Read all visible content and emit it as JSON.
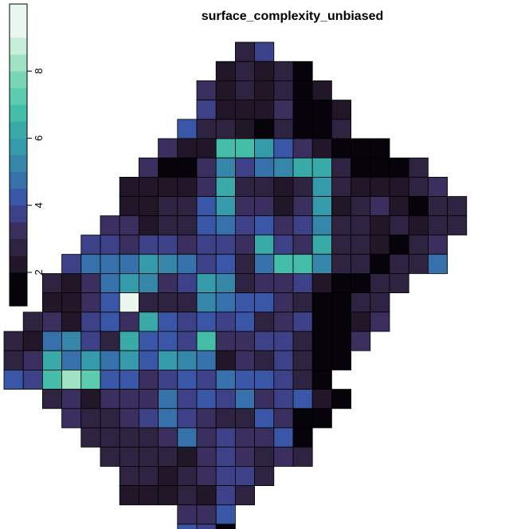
{
  "chart_data": {
    "type": "heatmap",
    "title": "surface_complexity_unbiased",
    "legend": {
      "position": "left",
      "range": [
        1,
        10
      ],
      "ticks": [
        2,
        4,
        6,
        8
      ],
      "bins": [
        1,
        2,
        2.5,
        3,
        3.5,
        4,
        4.5,
        5,
        5.5,
        6,
        6.5,
        7,
        7.5,
        8,
        8.5,
        9,
        10
      ],
      "colors": [
        "#06040a",
        "#221728",
        "#2e2341",
        "#3a2f5f",
        "#3d4187",
        "#3a56a6",
        "#3771ab",
        "#3686a9",
        "#359aaa",
        "#3aaaa8",
        "#44bea9",
        "#5bccad",
        "#79d6b4",
        "#9fe2c4",
        "#c7eed8",
        "#e9f7ee"
      ]
    },
    "col_origin": 3,
    "grid": [
      {
        "r": 0,
        "c0": 15,
        "v": [
          2.8,
          3.6
        ]
      },
      {
        "r": 1,
        "c0": 14,
        "v": [
          2.3,
          2.5,
          2.4,
          2.8,
          1.1
        ]
      },
      {
        "r": 2,
        "c0": 13,
        "v": [
          3.4,
          2.3,
          2.5,
          2.3,
          2.6,
          1.2,
          2.0
        ]
      },
      {
        "r": 3,
        "c0": 13,
        "v": [
          3.5,
          2.4,
          2.3,
          2.4,
          3.2,
          1.3,
          1.5,
          2.3
        ]
      },
      {
        "r": 4,
        "c0": 12,
        "v": [
          4.4,
          2.6,
          2.5,
          2.3,
          1.1,
          2.8,
          1.5,
          1.3,
          2.7
        ]
      },
      {
        "r": 5,
        "c0": 11,
        "v": [
          3.0,
          2.4,
          2.3,
          6.8,
          6.6,
          5.8,
          4.3,
          3.2,
          2.4,
          1.3,
          1.4,
          1.3
        ]
      },
      {
        "r": 6,
        "c0": 10,
        "v": [
          3.2,
          1.1,
          1.2,
          3.1,
          5.2,
          3.6,
          4.6,
          5.4,
          6.3,
          6.2,
          2.6,
          1.2,
          1.3,
          1.4,
          2.7
        ]
      },
      {
        "r": 7,
        "c0": 9,
        "v": [
          2.2,
          2.4,
          2.3,
          2.2,
          3.2,
          6.3,
          2.8,
          2.6,
          2.4,
          2.6,
          5.6,
          2.9,
          2.3,
          2.3,
          2.4,
          2.7,
          3.1
        ]
      },
      {
        "r": 8,
        "c0": 9,
        "v": [
          2.2,
          2.3,
          2.6,
          2.5,
          4.2,
          5.5,
          3.4,
          3.0,
          2.3,
          3.4,
          5.8,
          2.4,
          2.6,
          3.0,
          2.3,
          1.2,
          2.8,
          2.8
        ]
      },
      {
        "r": 9,
        "c0": 8,
        "v": [
          3.1,
          3.0,
          2.4,
          2.6,
          2.5,
          4.2,
          4.5,
          3.7,
          4.0,
          3.4,
          3.9,
          5.1,
          2.5,
          2.6,
          2.3,
          2.9,
          2.4,
          2.7,
          2.6
        ]
      },
      {
        "r": 10,
        "c0": 7,
        "v": [
          3.6,
          3.8,
          3.3,
          3.8,
          3.5,
          3.0,
          3.5,
          3.8,
          3.3,
          6.3,
          3.7,
          3.1,
          6.1,
          2.8,
          2.5,
          2.2,
          1.3,
          2.7,
          3.4
        ]
      },
      {
        "r": 11,
        "c0": 6,
        "v": [
          3.9,
          4.8,
          4.8,
          4.5,
          5.5,
          5.2,
          4.9,
          3.6,
          4.1,
          2.6,
          4.7,
          6.6,
          6.6,
          5.1,
          2.5,
          2.6,
          1.6,
          2.6,
          2.9,
          4.7
        ]
      },
      {
        "r": 12,
        "c0": 5,
        "v": [
          2.5,
          2.4,
          3.3,
          4.5,
          5.9,
          5.3,
          3.3,
          3.7,
          5.6,
          5.4,
          2.5,
          3.2,
          3.0,
          3.5,
          2.4,
          1.3,
          1.4,
          2.7,
          2.5
        ]
      },
      {
        "r": 13,
        "c0": 5,
        "v": [
          2.4,
          2.3,
          3.3,
          4.2,
          9.2,
          2.8,
          2.5,
          2.7,
          5.0,
          4.8,
          4.0,
          4.4,
          3.3,
          2.6,
          1.4,
          1.5,
          2.6,
          2.5
        ]
      },
      {
        "r": 14,
        "c0": 4,
        "v": [
          2.8,
          3.4,
          2.4,
          3.5,
          4.2,
          3.4,
          6.3,
          4.4,
          3.6,
          4.2,
          3.8,
          4.3,
          2.5,
          3.3,
          3.9,
          1.1,
          1.3,
          2.4,
          3.2
        ]
      },
      {
        "r": 15,
        "c0": 3,
        "v": [
          2.5,
          2.3,
          4.9,
          5.3,
          3.8,
          2.8,
          6.0,
          4.1,
          4.2,
          3.5,
          6.5,
          3.3,
          3.0,
          3.8,
          3.5,
          2.7,
          1.2,
          1.3,
          3.3
        ]
      },
      {
        "r": 16,
        "c0": 3,
        "v": [
          2.6,
          3.4,
          6.0,
          4.5,
          5.5,
          4.6,
          5.8,
          4.3,
          5.7,
          5.0,
          4.6,
          2.4,
          3.3,
          2.5,
          3.6,
          2.9,
          1.3,
          1.2
        ]
      },
      {
        "r": 17,
        "c0": 3,
        "v": [
          4.0,
          3.5,
          6.8,
          8.0,
          7.0,
          4.0,
          4.4,
          3.4,
          3.7,
          4.3,
          3.6,
          4.6,
          4.2,
          4.0,
          3.6,
          2.8,
          1.2
        ]
      },
      {
        "r": 18,
        "c0": 5,
        "v": [
          2.6,
          3.3,
          2.4,
          3.0,
          3.4,
          3.3,
          4.8,
          3.8,
          4.2,
          3.5,
          4.7,
          3.2,
          3.8,
          4.4,
          2.4,
          1.2
        ]
      },
      {
        "r": 19,
        "c0": 6,
        "v": [
          3.3,
          2.7,
          2.5,
          3.2,
          3.6,
          4.5,
          3.8,
          3.4,
          2.7,
          2.8,
          4.4,
          3.3,
          1.2,
          1.3
        ]
      },
      {
        "r": 20,
        "c0": 7,
        "v": [
          2.7,
          2.6,
          2.5,
          2.5,
          3.4,
          4.5,
          3.0,
          3.6,
          3.3,
          3.4,
          4.3,
          1.1
        ]
      },
      {
        "r": 21,
        "c0": 8,
        "v": [
          2.5,
          2.5,
          2.6,
          2.6,
          2.4,
          3.4,
          3.5,
          3.3,
          2.6,
          3.2,
          2.8
        ]
      },
      {
        "r": 22,
        "c0": 9,
        "v": [
          2.6,
          2.6,
          2.4,
          2.5,
          3.0,
          3.6,
          3.5,
          2.8
        ]
      },
      {
        "r": 23,
        "c0": 9,
        "v": [
          2.3,
          2.3,
          2.4,
          2.5,
          2.4,
          3.5,
          2.6
        ]
      },
      {
        "r": 24,
        "c0": 12,
        "v": [
          3.4,
          3.0,
          4.0
        ]
      },
      {
        "r": 25,
        "c0": 12,
        "v": [
          4.2,
          3.6,
          1.1
        ]
      }
    ]
  }
}
